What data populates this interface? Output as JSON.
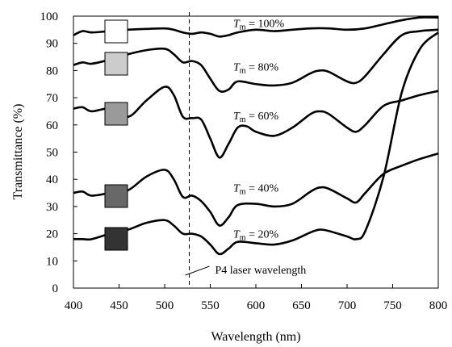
{
  "chart_data": {
    "type": "line",
    "xlabel": "Wavelength (nm)",
    "ylabel": "Transmittance (%)",
    "xlim": [
      400,
      800
    ],
    "ylim": [
      0,
      100
    ],
    "xticks": [
      400,
      450,
      500,
      550,
      600,
      650,
      700,
      750,
      800
    ],
    "yticks": [
      0,
      10,
      20,
      30,
      40,
      50,
      60,
      70,
      80,
      90,
      100
    ],
    "grid": false,
    "annotation": {
      "x": 527,
      "text": "P4 laser wavelength"
    },
    "series": [
      {
        "name_var": "T",
        "name_sub": "m",
        "name_rest": " = 100%",
        "swatch_color": "#ffffff",
        "x": [
          400,
          410,
          420,
          440,
          460,
          480,
          500,
          510,
          520,
          530,
          540,
          550,
          560,
          570,
          580,
          600,
          620,
          640,
          660,
          680,
          700,
          720,
          740,
          760,
          780,
          800
        ],
        "y": [
          93,
          94.5,
          94,
          94.5,
          95,
          95.3,
          95.5,
          95,
          94,
          93.5,
          94,
          93.5,
          92.5,
          93,
          94,
          95,
          94.5,
          95,
          95.5,
          95.5,
          95,
          95.5,
          97,
          98.5,
          99.5,
          99.5
        ]
      },
      {
        "name_var": "T",
        "name_sub": "m",
        "name_rest": " = 80%",
        "swatch_color": "#cccccc",
        "x": [
          400,
          410,
          420,
          440,
          460,
          480,
          500,
          510,
          520,
          530,
          540,
          550,
          560,
          570,
          580,
          600,
          620,
          640,
          660,
          670,
          680,
          700,
          710,
          720,
          740,
          760,
          780,
          800
        ],
        "y": [
          82,
          83,
          82.5,
          84,
          86,
          87.5,
          88,
          86,
          83,
          83.5,
          82,
          77,
          72.5,
          73,
          76,
          75,
          74.5,
          75.5,
          79,
          80,
          79.5,
          76,
          75.5,
          78,
          86,
          93,
          94.5,
          95
        ]
      },
      {
        "name_var": "T",
        "name_sub": "m",
        "name_rest": " = 60%",
        "swatch_color": "#9a9a9a",
        "x": [
          400,
          410,
          420,
          440,
          460,
          480,
          500,
          510,
          520,
          530,
          540,
          550,
          560,
          570,
          580,
          590,
          600,
          620,
          640,
          660,
          670,
          680,
          700,
          710,
          720,
          740,
          760,
          780,
          800
        ],
        "y": [
          66,
          66.5,
          65,
          66,
          63,
          69,
          74,
          71,
          63,
          62.5,
          62,
          55,
          48,
          53,
          59,
          59.5,
          57.5,
          56,
          59,
          64,
          65,
          64,
          59,
          57.5,
          60,
          67,
          69,
          71,
          72.5
        ]
      },
      {
        "name_var": "T",
        "name_sub": "m",
        "name_rest": " = 40%",
        "swatch_color": "#686868",
        "x": [
          400,
          410,
          420,
          440,
          460,
          480,
          500,
          510,
          520,
          530,
          540,
          550,
          560,
          570,
          580,
          600,
          620,
          640,
          660,
          670,
          680,
          700,
          710,
          720,
          740,
          760,
          780,
          800
        ],
        "y": [
          35,
          35.5,
          34,
          35,
          36,
          41,
          43.5,
          40,
          33.5,
          34,
          32,
          28,
          23,
          26,
          30.5,
          31,
          30,
          31,
          35.5,
          37,
          36.5,
          33,
          31.5,
          35,
          42,
          45,
          47.5,
          49.5
        ]
      },
      {
        "name_var": "T",
        "name_sub": "m",
        "name_rest": " = 20%",
        "swatch_color": "#333333",
        "x": [
          400,
          410,
          420,
          440,
          460,
          480,
          500,
          510,
          520,
          530,
          540,
          550,
          560,
          570,
          580,
          600,
          620,
          640,
          660,
          670,
          680,
          700,
          710,
          720,
          740,
          760,
          780,
          800
        ],
        "y": [
          18,
          18,
          18,
          20,
          21.5,
          24,
          25,
          23,
          20,
          20,
          19,
          16,
          12.5,
          14.5,
          17,
          16.5,
          16,
          17.5,
          20.5,
          21.5,
          21,
          19,
          18,
          21,
          41,
          72,
          88,
          94
        ]
      }
    ]
  }
}
